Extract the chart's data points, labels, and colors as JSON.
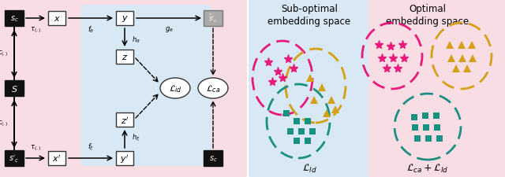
{
  "bg_color": "#ffffff",
  "left_panel_bg": "#f8dde5",
  "center_panel_bg": "#d8e8f5",
  "subopt_panel_bg": "#d8e8f5",
  "opt_panel_bg": "#f8dde5",
  "pink_color": "#e8197a",
  "gold_color": "#d4a017",
  "teal_color": "#1a9080",
  "dark_box_color": "#111111",
  "light_box_color": "#ffffff",
  "gray_box_color": "#888888",
  "subopt_title": "Sub-optimal\nembedding space",
  "opt_title": "Optimal\nembedding space",
  "subopt_label": "$\\mathcal{L}_{ld}$",
  "opt_label": "$\\mathcal{L}_{ca} + \\mathcal{L}_{ld}$"
}
